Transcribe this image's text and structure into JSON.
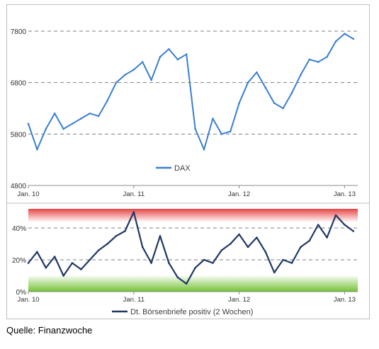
{
  "source_note": "Quelle: Finanzwoche",
  "colors": {
    "dax_line": "#3a7fd0",
    "sentiment_line": "#1f3864",
    "grid": "#7f7f7f",
    "red_zone": "#e63b3b",
    "green_zone": "#6cbf2a"
  },
  "chart_data": [
    {
      "type": "line",
      "legend": [
        "DAX"
      ],
      "legend_position": "bottom-center",
      "y_ticks": [
        "4800",
        "5800",
        "6800",
        "7800"
      ],
      "ylim": [
        4800,
        7800
      ],
      "x_ticks": [
        "Jan. 10",
        "Jan. 11",
        "Jan. 12",
        "Jan. 13"
      ],
      "grid": "horizontal dashed",
      "x": [
        "2010-01",
        "2010-02",
        "2010-03",
        "2010-04",
        "2010-05",
        "2010-06",
        "2010-07",
        "2010-08",
        "2010-09",
        "2010-10",
        "2010-11",
        "2010-12",
        "2011-01",
        "2011-02",
        "2011-03",
        "2011-04",
        "2011-05",
        "2011-06",
        "2011-07",
        "2011-08",
        "2011-09",
        "2011-10",
        "2011-11",
        "2011-12",
        "2012-01",
        "2012-02",
        "2012-03",
        "2012-04",
        "2012-05",
        "2012-06",
        "2012-07",
        "2012-08",
        "2012-09",
        "2012-10",
        "2012-11",
        "2012-12",
        "2013-01",
        "2013-02"
      ],
      "series": [
        {
          "name": "DAX",
          "values": [
            6000,
            5500,
            5900,
            6200,
            5900,
            6000,
            6100,
            6200,
            6150,
            6450,
            6800,
            6950,
            7050,
            7200,
            6850,
            7300,
            7450,
            7250,
            7350,
            5900,
            5500,
            6100,
            5800,
            5850,
            6400,
            6800,
            7000,
            6700,
            6400,
            6300,
            6600,
            6950,
            7250,
            7200,
            7300,
            7600,
            7750,
            7650
          ]
        }
      ]
    },
    {
      "type": "line",
      "legend": [
        "Dt. Börsenbriefe positiv (2 Wochen)"
      ],
      "legend_position": "bottom-center",
      "y_ticks": [
        "0%",
        "20%",
        "40%"
      ],
      "ylim": [
        0,
        52
      ],
      "x_ticks": [
        "Jan. 10",
        "Jan. 11",
        "Jan. 12",
        "Jan. 13"
      ],
      "bands": [
        {
          "label": "red zone",
          "range": [
            44,
            52
          ]
        },
        {
          "label": "green zone",
          "range": [
            0,
            10
          ]
        }
      ],
      "grid": "horizontal dashed",
      "x": [
        "2010-01",
        "2010-02",
        "2010-03",
        "2010-04",
        "2010-05",
        "2010-06",
        "2010-07",
        "2010-08",
        "2010-09",
        "2010-10",
        "2010-11",
        "2010-12",
        "2011-01",
        "2011-02",
        "2011-03",
        "2011-04",
        "2011-05",
        "2011-06",
        "2011-07",
        "2011-08",
        "2011-09",
        "2011-10",
        "2011-11",
        "2011-12",
        "2012-01",
        "2012-02",
        "2012-03",
        "2012-04",
        "2012-05",
        "2012-06",
        "2012-07",
        "2012-08",
        "2012-09",
        "2012-10",
        "2012-11",
        "2012-12",
        "2013-01",
        "2013-02"
      ],
      "series": [
        {
          "name": "Dt. Börsenbriefe positiv (2 Wochen)",
          "values": [
            18,
            25,
            15,
            22,
            10,
            18,
            14,
            20,
            26,
            30,
            35,
            38,
            50,
            28,
            18,
            35,
            18,
            9,
            5,
            15,
            20,
            18,
            26,
            30,
            36,
            28,
            34,
            25,
            12,
            20,
            18,
            28,
            32,
            42,
            34,
            48,
            42,
            38
          ]
        }
      ]
    }
  ]
}
